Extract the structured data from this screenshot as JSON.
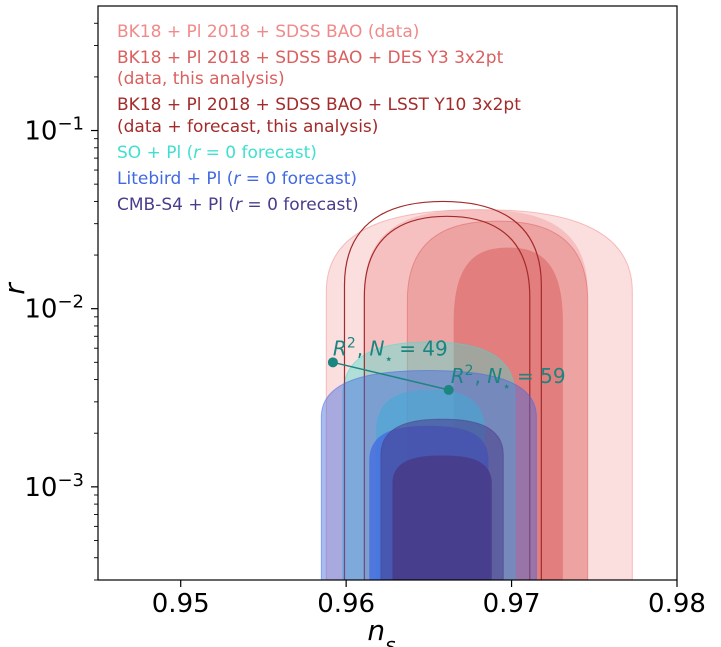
{
  "chart_data": {
    "type": "contour",
    "xlabel": "n_s",
    "ylabel": "r",
    "xlim": [
      0.945,
      0.98
    ],
    "ylim": [
      0.0003,
      0.5
    ],
    "yscale": "log",
    "grid": false,
    "legend_position": "top-left",
    "xticks": [
      0.95,
      0.96,
      0.97,
      0.98
    ],
    "xtick_labels": [
      "0.95",
      "0.96",
      "0.97",
      "0.98"
    ],
    "yticks": [
      0.001,
      0.01,
      0.1
    ],
    "ytick_labels": [
      "10",
      "10",
      "10"
    ],
    "ytick_exponents": [
      "−3",
      "−2",
      "−1"
    ],
    "series": [
      {
        "name": "BK18 + Pl 2018 + SDSS BAO (data)",
        "color": "#f08a8a",
        "kind": "filled",
        "upper_limit_2sigma": 0.036,
        "n_s_range_2sigma": [
          0.9588,
          0.9773
        ],
        "n_s_range_1sigma": [
          0.9611,
          0.9746
        ]
      },
      {
        "name": "BK18 + Pl 2018 + SDSS BAO + DES Y3 3x2pt (data, this analysis)",
        "color": "#d9605f",
        "kind": "filled",
        "upper_limit_2sigma": 0.031,
        "upper_limit_1sigma": 0.022,
        "n_s_range_2sigma": [
          0.9637,
          0.9746
        ],
        "n_s_range_1sigma": [
          0.9665,
          0.9731
        ]
      },
      {
        "name": "BK18 + Pl 2018 + SDSS BAO + LSST Y10 3x2pt (data + forecast, this analysis)",
        "color": "#a32b2b",
        "kind": "line",
        "upper_limit_2sigma": 0.04,
        "upper_limit_1sigma": 0.033,
        "n_s_range_2sigma": [
          0.9599,
          0.9718
        ],
        "n_s_range_1sigma": [
          0.9611,
          0.9711
        ]
      },
      {
        "name": "SO + Pl (r = 0 forecast)",
        "color": "#40e0d0",
        "kind": "filled",
        "upper_limit_2sigma": 0.0065,
        "upper_limit_1sigma": 0.0035,
        "n_s_range_2sigma": [
          0.9598,
          0.9702
        ],
        "n_s_range_1sigma": [
          0.9618,
          0.9684
        ]
      },
      {
        "name": "Litebird + Pl (r = 0 forecast)",
        "color": "#4169e1",
        "kind": "filled",
        "upper_limit_2sigma": 0.0045,
        "upper_limit_1sigma": 0.0022,
        "n_s_range_2sigma": [
          0.9585,
          0.9715
        ],
        "n_s_range_1sigma": [
          0.9614,
          0.9686
        ]
      },
      {
        "name": "CMB-S4 + Pl (r = 0 forecast)",
        "color": "#483d8b",
        "kind": "filled",
        "upper_limit_2sigma": 0.0024,
        "upper_limit_1sigma": 0.0015,
        "n_s_range_2sigma": [
          0.9621,
          0.9695
        ],
        "n_s_range_1sigma": [
          0.9628,
          0.9688
        ]
      }
    ],
    "annotations": [
      {
        "label_base": "R",
        "label_sup": "2",
        "label_sub": "⋆",
        "label_rest": "= 49",
        "n_s": 0.9592,
        "r": 0.005
      },
      {
        "label_base": "R",
        "label_sup": "2",
        "label_sub": "⋆",
        "label_rest": "= 59",
        "n_s": 0.9662,
        "r": 0.0035
      }
    ]
  }
}
